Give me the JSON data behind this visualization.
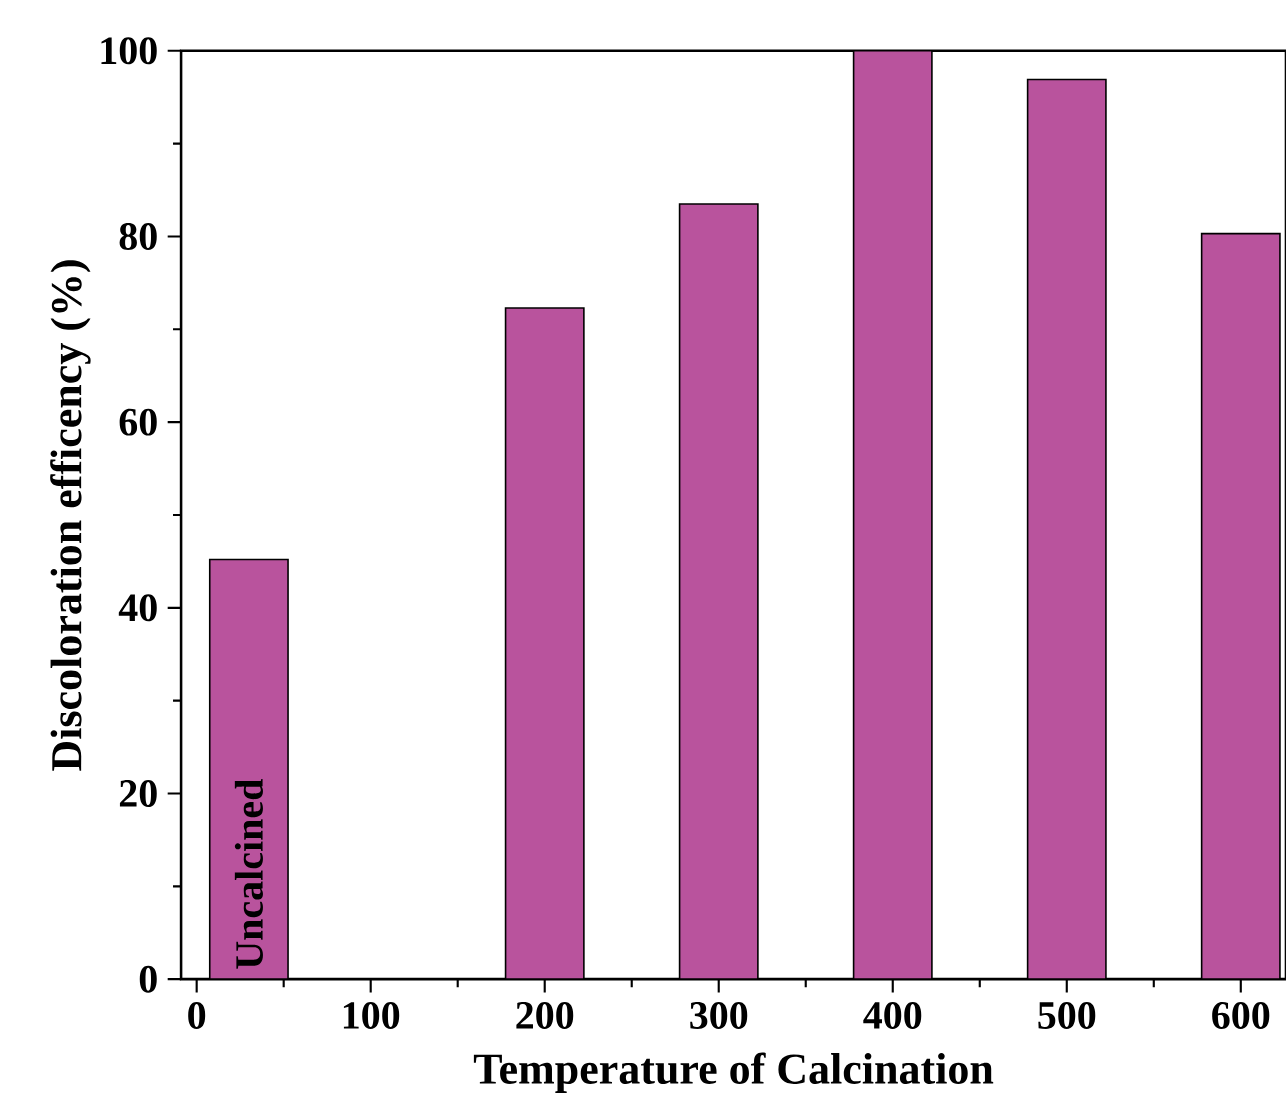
{
  "chart_data": {
    "type": "bar",
    "xlabel": "Temperature of Calcination",
    "ylabel": "Discoloration efficency (%)",
    "x": [
      30,
      200,
      300,
      400,
      500,
      600
    ],
    "values": [
      45.2,
      72.3,
      83.5,
      100,
      96.9,
      80.3
    ],
    "color": "#b9539d",
    "xlim": [
      -9,
      626
    ],
    "ylim": [
      0,
      100
    ],
    "xticks": [
      0,
      100,
      200,
      300,
      400,
      500,
      600
    ],
    "yticks": [
      0,
      20,
      40,
      60,
      80,
      100
    ],
    "annotations": [
      "Uncalcined"
    ]
  }
}
